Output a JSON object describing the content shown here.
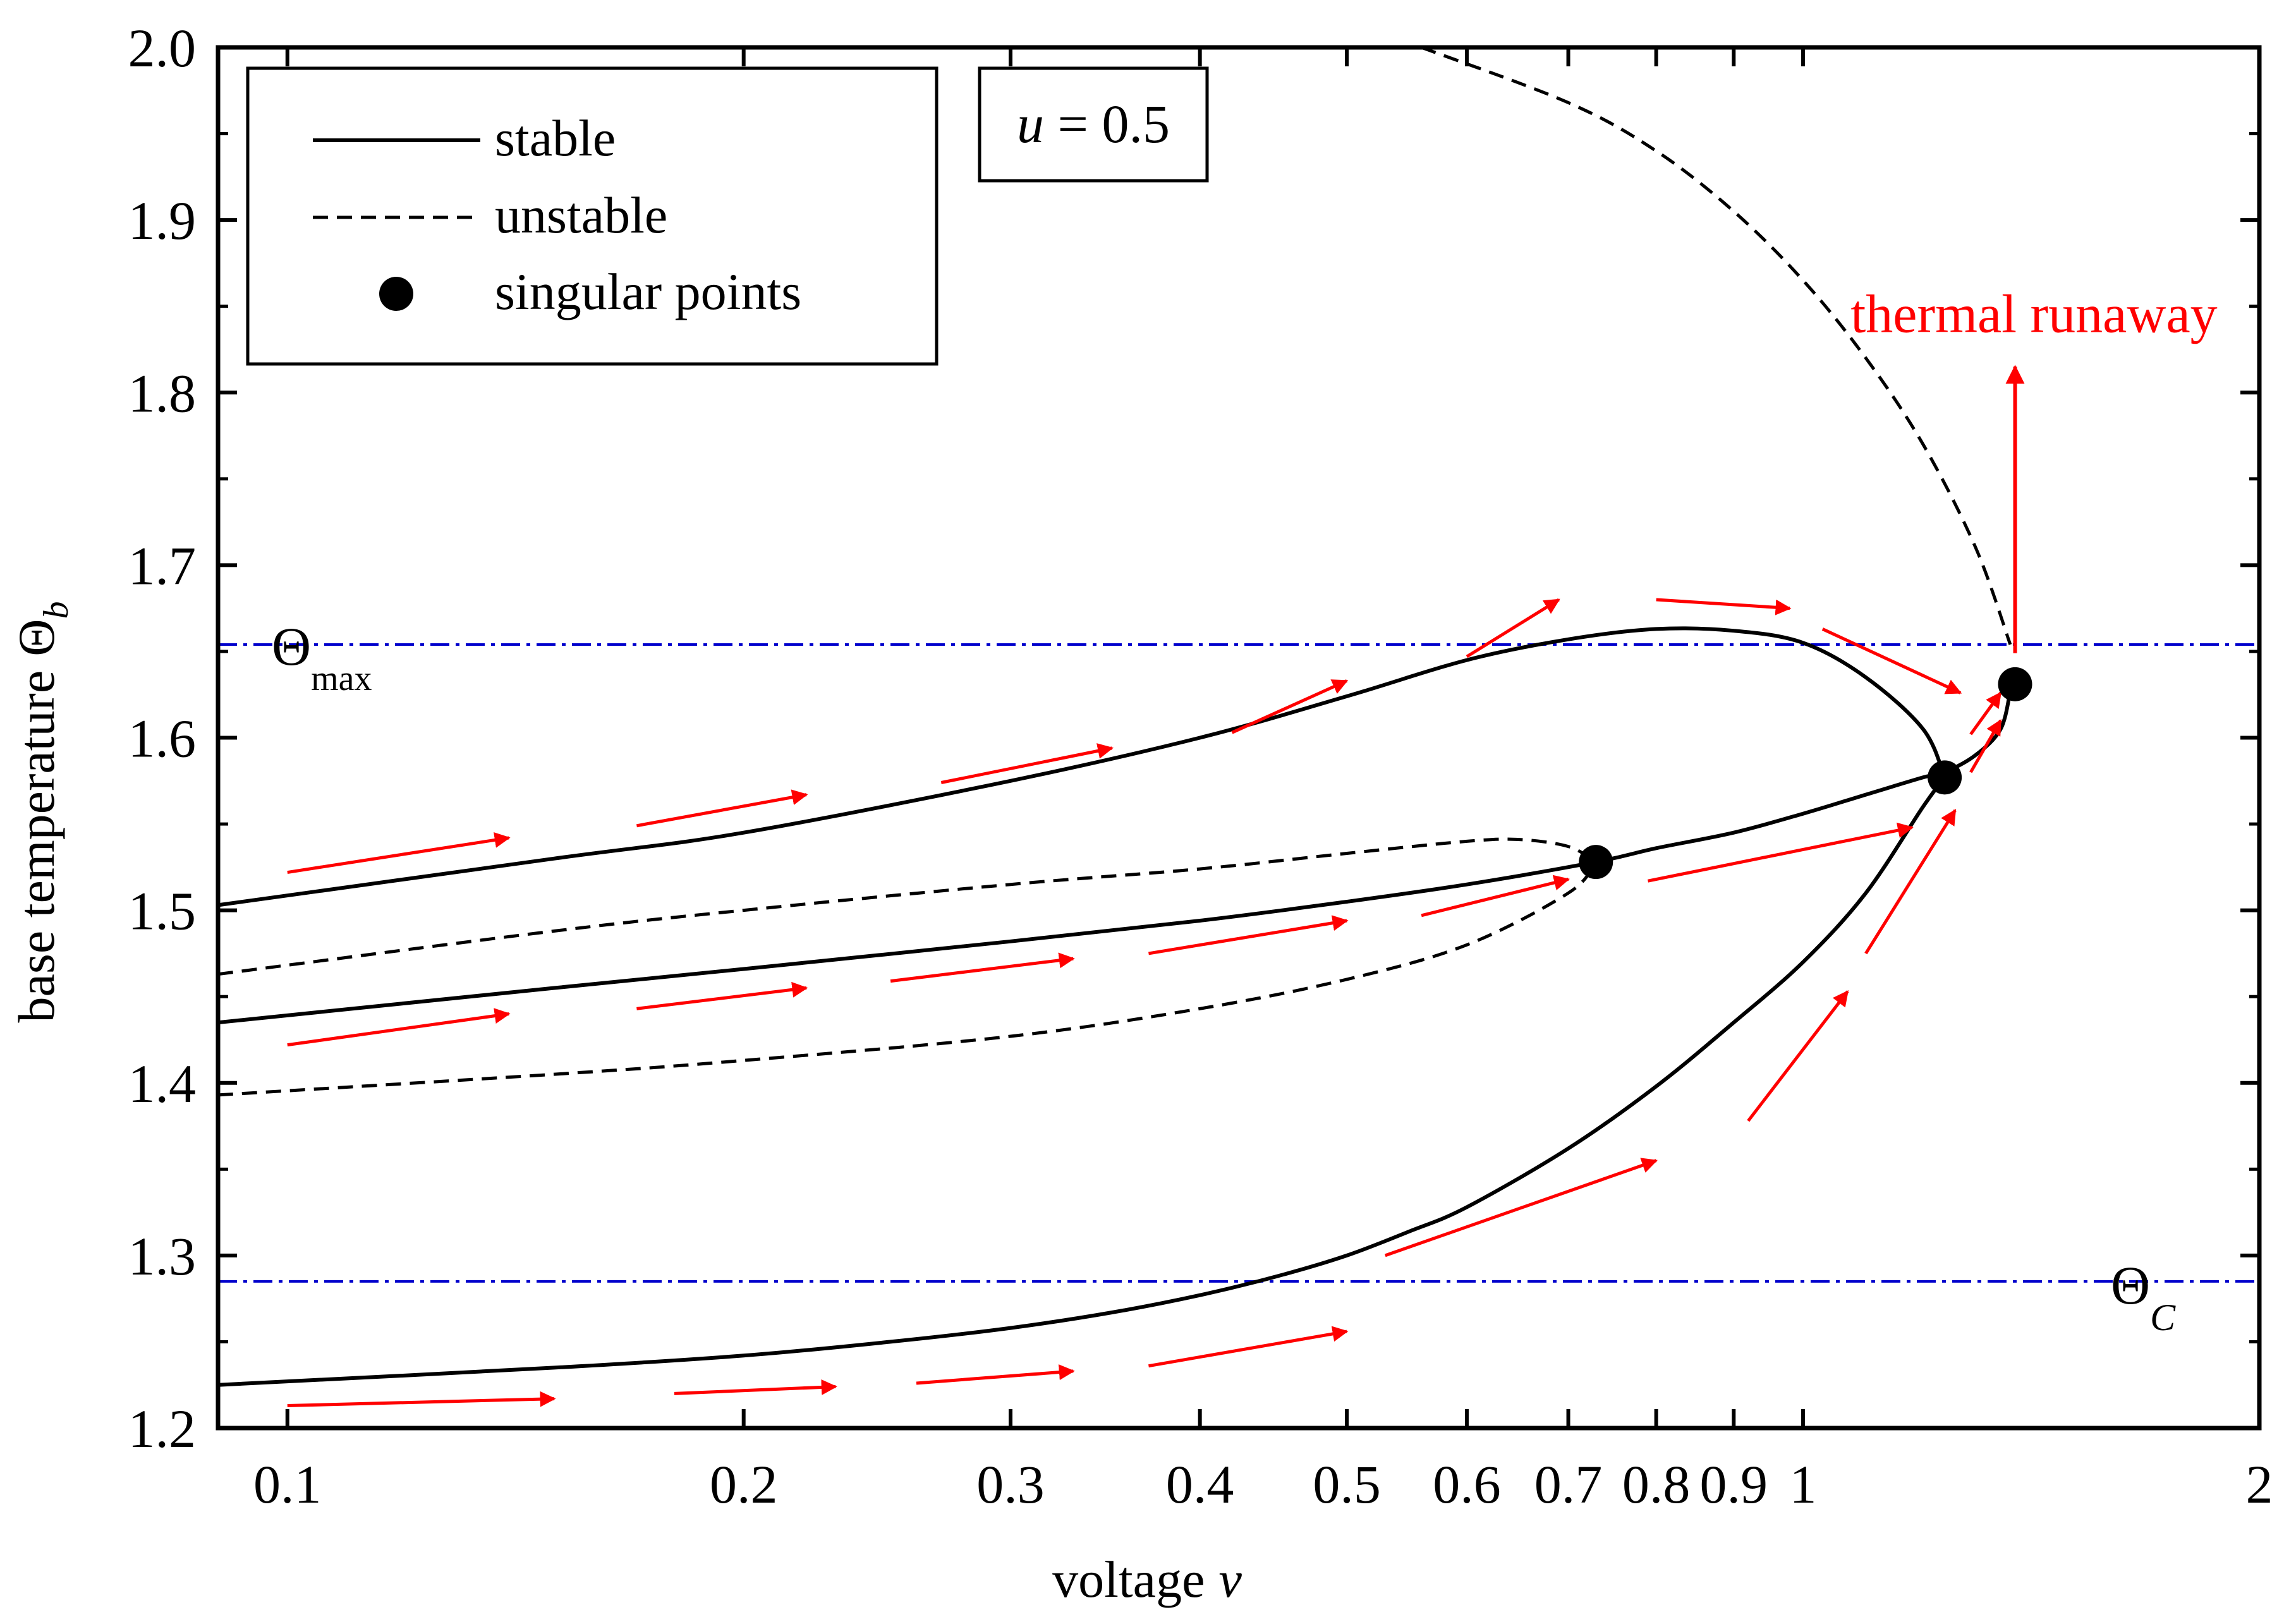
{
  "chart_data": {
    "type": "line",
    "xscale": "log",
    "xlim": [
      0.09,
      2.0
    ],
    "ylim": [
      1.2,
      2.0
    ],
    "xlabel": "voltage",
    "xlabel_var": "v",
    "ylabel": "base temperature",
    "ylabel_var": "Θ",
    "ylabel_sub": "b",
    "xticks": [
      {
        "value": 0.1,
        "label": "0.1"
      },
      {
        "value": 0.2,
        "label": "0.2"
      },
      {
        "value": 0.3,
        "label": "0.3"
      },
      {
        "value": 0.4,
        "label": "0.4"
      },
      {
        "value": 0.5,
        "label": "0.5"
      },
      {
        "value": 0.6,
        "label": "0.6"
      },
      {
        "value": 0.7,
        "label": "0.7"
      },
      {
        "value": 0.8,
        "label": "0.8"
      },
      {
        "value": 0.9,
        "label": "0.9"
      },
      {
        "value": 1.0,
        "label": "1"
      },
      {
        "value": 2.0,
        "label": "2"
      }
    ],
    "yticks": [
      {
        "value": 1.2,
        "label": "1.2"
      },
      {
        "value": 1.3,
        "label": "1.3"
      },
      {
        "value": 1.4,
        "label": "1.4"
      },
      {
        "value": 1.5,
        "label": "1.5"
      },
      {
        "value": 1.6,
        "label": "1.6"
      },
      {
        "value": 1.7,
        "label": "1.7"
      },
      {
        "value": 1.8,
        "label": "1.8"
      },
      {
        "value": 1.9,
        "label": "1.9"
      },
      {
        "value": 2.0,
        "label": "2.0"
      }
    ],
    "legend": {
      "placement": "top-left",
      "entries": [
        {
          "label": "stable",
          "style": "solid"
        },
        {
          "label": "unstable",
          "style": "dashed"
        },
        {
          "label": "singular points",
          "style": "marker"
        }
      ]
    },
    "parameter_box": {
      "var": "u",
      "text": " = 0.5"
    },
    "hlines": [
      {
        "name": "theta-max",
        "y": 1.654,
        "symbol": "Θ",
        "sub": "max",
        "color": "#0000cc"
      },
      {
        "name": "theta-c",
        "y": 1.285,
        "symbol": "Θ",
        "sub": "C",
        "color": "#0000cc"
      }
    ],
    "series": [
      {
        "name": "stable-lower",
        "style": "solid",
        "x": [
          0.09,
          0.15,
          0.2,
          0.25,
          0.3,
          0.35,
          0.4,
          0.45,
          0.5,
          0.55,
          0.6,
          0.7,
          0.8,
          0.9,
          1.0,
          1.1,
          1.2,
          1.24
        ],
        "y": [
          1.225,
          1.235,
          1.242,
          1.25,
          1.258,
          1.267,
          1.277,
          1.288,
          1.3,
          1.314,
          1.328,
          1.362,
          1.398,
          1.435,
          1.47,
          1.51,
          1.56,
          1.577
        ]
      },
      {
        "name": "stable-upper",
        "style": "solid",
        "x": [
          0.09,
          0.15,
          0.2,
          0.3,
          0.4,
          0.5,
          0.6,
          0.7,
          0.8,
          0.9,
          1.0,
          1.1,
          1.2,
          1.24
        ],
        "y": [
          1.503,
          1.53,
          1.545,
          1.575,
          1.6,
          1.624,
          1.645,
          1.657,
          1.663,
          1.662,
          1.655,
          1.635,
          1.605,
          1.577
        ]
      },
      {
        "name": "stable-middle",
        "style": "solid",
        "x": [
          0.09,
          0.15,
          0.2,
          0.3,
          0.4,
          0.5,
          0.6,
          0.73,
          0.8,
          0.9,
          1.0,
          1.1,
          1.2,
          1.24,
          1.3,
          1.35,
          1.37
        ],
        "y": [
          1.435,
          1.455,
          1.466,
          1.482,
          1.494,
          1.505,
          1.515,
          1.528,
          1.536,
          1.545,
          1.556,
          1.567,
          1.577,
          1.58,
          1.59,
          1.605,
          1.627
        ]
      },
      {
        "name": "unstable-lower",
        "style": "dashed",
        "x": [
          0.09,
          0.15,
          0.2,
          0.3,
          0.4,
          0.5,
          0.6,
          0.7,
          0.73
        ],
        "y": [
          1.393,
          1.405,
          1.413,
          1.427,
          1.443,
          1.46,
          1.48,
          1.51,
          1.528
        ]
      },
      {
        "name": "unstable-upper-loop",
        "style": "dashed",
        "x": [
          0.09,
          0.15,
          0.2,
          0.3,
          0.4,
          0.5,
          0.6,
          0.65,
          0.7,
          0.73
        ],
        "y": [
          1.463,
          1.488,
          1.5,
          1.515,
          1.524,
          1.533,
          1.54,
          1.541,
          1.537,
          1.528
        ]
      },
      {
        "name": "unstable-top",
        "style": "dashed",
        "x": [
          0.56,
          0.7,
          0.8,
          0.9,
          1.0,
          1.1,
          1.2,
          1.3,
          1.37
        ],
        "y": [
          2.0,
          1.968,
          1.94,
          1.905,
          1.865,
          1.82,
          1.77,
          1.71,
          1.654
        ]
      }
    ],
    "singular_points": [
      {
        "x": 0.73,
        "y": 1.528
      },
      {
        "x": 1.24,
        "y": 1.577
      },
      {
        "x": 1.38,
        "y": 1.631
      }
    ],
    "flow_arrows": [
      {
        "from": [
          0.1,
          1.522
        ],
        "to": [
          0.14,
          1.542
        ]
      },
      {
        "from": [
          0.17,
          1.549
        ],
        "to": [
          0.22,
          1.567
        ]
      },
      {
        "from": [
          0.27,
          1.574
        ],
        "to": [
          0.35,
          1.594
        ]
      },
      {
        "from": [
          0.42,
          1.603
        ],
        "to": [
          0.5,
          1.633
        ]
      },
      {
        "from": [
          0.6,
          1.647
        ],
        "to": [
          0.69,
          1.68
        ]
      },
      {
        "from": [
          0.8,
          1.68
        ],
        "to": [
          0.98,
          1.675
        ]
      },
      {
        "from": [
          1.03,
          1.663
        ],
        "to": [
          1.27,
          1.626
        ]
      },
      {
        "from": [
          1.29,
          1.602
        ],
        "to": [
          1.35,
          1.626
        ]
      },
      {
        "from": [
          1.29,
          1.58
        ],
        "to": [
          1.35,
          1.61
        ]
      },
      {
        "from": [
          0.1,
          1.422
        ],
        "to": [
          0.14,
          1.44
        ]
      },
      {
        "from": [
          0.17,
          1.443
        ],
        "to": [
          0.22,
          1.455
        ]
      },
      {
        "from": [
          0.25,
          1.459
        ],
        "to": [
          0.33,
          1.472
        ]
      },
      {
        "from": [
          0.37,
          1.475
        ],
        "to": [
          0.5,
          1.494
        ]
      },
      {
        "from": [
          0.56,
          1.497
        ],
        "to": [
          0.7,
          1.518
        ]
      },
      {
        "from": [
          0.79,
          1.517
        ],
        "to": [
          1.18,
          1.548
        ]
      },
      {
        "from": [
          0.1,
          1.213
        ],
        "to": [
          0.15,
          1.217
        ]
      },
      {
        "from": [
          0.18,
          1.22
        ],
        "to": [
          0.23,
          1.224
        ]
      },
      {
        "from": [
          0.26,
          1.226
        ],
        "to": [
          0.33,
          1.233
        ]
      },
      {
        "from": [
          0.37,
          1.236
        ],
        "to": [
          0.5,
          1.256
        ]
      },
      {
        "from": [
          0.53,
          1.3
        ],
        "to": [
          0.8,
          1.355
        ]
      },
      {
        "from": [
          0.92,
          1.378
        ],
        "to": [
          1.07,
          1.453
        ]
      },
      {
        "from": [
          1.1,
          1.475
        ],
        "to": [
          1.26,
          1.558
        ]
      }
    ],
    "runaway": {
      "x": 1.38,
      "y_from": 1.649,
      "y_to": 1.815,
      "label": "thermal runaway",
      "label_x": 1.38,
      "label_y": 1.835
    }
  }
}
